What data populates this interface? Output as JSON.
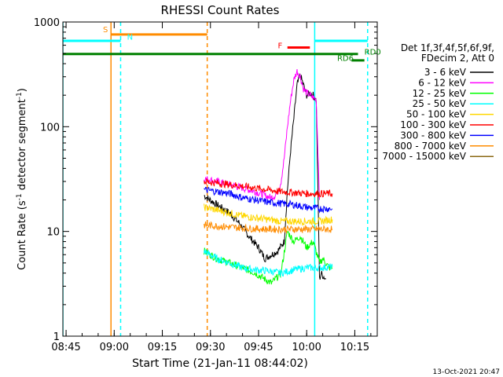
{
  "chart_data": {
    "type": "line",
    "title": "RHESSI Count Rates",
    "xlabel": "Start Time (21-Jan-11 08:44:02)",
    "ylabel_main": "Count Rate (s",
    "ylabel_sup1": "-1",
    "ylabel_mid": " detector segment",
    "ylabel_sup2": "-1",
    "ylabel_end": ")",
    "x_unit": "minutes since 08:44:02",
    "xlim": [
      0,
      98
    ],
    "ylim": [
      1,
      1000
    ],
    "y_scale": "log",
    "x_ticks": [
      {
        "label": "08:45",
        "value": 1
      },
      {
        "label": "09:00",
        "value": 16
      },
      {
        "label": "09:15",
        "value": 31
      },
      {
        "label": "09:30",
        "value": 46
      },
      {
        "label": "09:45",
        "value": 61
      },
      {
        "label": "10:00",
        "value": 76
      },
      {
        "label": "10:15",
        "value": 91
      }
    ],
    "y_ticks": [
      {
        "label": "1",
        "value": 1
      },
      {
        "label": "10",
        "value": 10
      },
      {
        "label": "100",
        "value": 100
      },
      {
        "label": "1000",
        "value": 1000
      }
    ],
    "legend_header": [
      "Det 1f,3f,4f,5f,6f,9f,",
      "FDecim 2, Att 0"
    ],
    "legend_placement": "right",
    "series": [
      {
        "name": "3 - 6 keV",
        "color": "#000000",
        "x": [
          44,
          48,
          52,
          55,
          58,
          61,
          63,
          65,
          67,
          69,
          70,
          71,
          72,
          73,
          74,
          75,
          76,
          77,
          78,
          79,
          80,
          80.5,
          81,
          82
        ],
        "y": [
          22,
          18,
          15,
          12,
          9,
          7,
          5.5,
          6,
          6.5,
          8,
          25,
          60,
          120,
          250,
          310,
          250,
          200,
          210,
          200,
          180,
          3.5,
          4,
          3.8,
          3.5
        ]
      },
      {
        "name": "6 - 12 keV",
        "color": "#ff00ff",
        "x": [
          44,
          48,
          52,
          56,
          60,
          63,
          65,
          66,
          67,
          68,
          69,
          70,
          71,
          72,
          73,
          74,
          75,
          76,
          77,
          78,
          79,
          80
        ],
        "y": [
          32,
          30,
          28,
          26,
          24,
          22,
          21,
          22,
          24,
          30,
          50,
          100,
          180,
          280,
          340,
          300,
          230,
          210,
          200,
          190,
          180,
          20
        ]
      },
      {
        "name": "12 - 25 keV",
        "color": "#00ff00",
        "x": [
          44,
          48,
          52,
          56,
          60,
          63,
          65,
          68,
          70,
          72,
          74,
          76,
          78,
          80,
          81,
          82,
          83,
          84
        ],
        "y": [
          6.5,
          5.5,
          5,
          4.5,
          4,
          3.5,
          3.2,
          4,
          10,
          8,
          9,
          7,
          8,
          5,
          5.5,
          5,
          4.5,
          4.5
        ]
      },
      {
        "name": "25 - 50 keV",
        "color": "#00ffff",
        "x": [
          44,
          48,
          52,
          56,
          60,
          64,
          68,
          72,
          76,
          80,
          84
        ],
        "y": [
          6.5,
          5.5,
          5,
          4.5,
          4.3,
          4.2,
          4,
          4.3,
          4.5,
          4.5,
          4.6
        ]
      },
      {
        "name": "50 - 100 keV",
        "color": "#ffd700",
        "x": [
          44,
          48,
          52,
          56,
          60,
          64,
          68,
          72,
          76,
          80,
          84
        ],
        "y": [
          17,
          16,
          15,
          14,
          13.5,
          13,
          12.5,
          12.5,
          12.5,
          12.5,
          13
        ]
      },
      {
        "name": "100 - 300 keV",
        "color": "#ff0000",
        "x": [
          44,
          48,
          52,
          56,
          60,
          64,
          68,
          72,
          76,
          80,
          84
        ],
        "y": [
          30,
          29,
          28,
          27,
          26,
          25,
          24,
          23.5,
          23,
          23,
          23
        ]
      },
      {
        "name": "300 - 800 keV",
        "color": "#0000ff",
        "x": [
          44,
          48,
          52,
          56,
          60,
          64,
          68,
          72,
          76,
          80,
          84
        ],
        "y": [
          25,
          24,
          23,
          21,
          20,
          19,
          18.5,
          18,
          17,
          16.5,
          16.5
        ]
      },
      {
        "name": "800 - 7000 keV",
        "color": "#ff8c00",
        "x": [
          44,
          48,
          52,
          56,
          60,
          64,
          68,
          72,
          76,
          80,
          84
        ],
        "y": [
          11.5,
          11.3,
          11,
          10.8,
          10.6,
          10.5,
          10.5,
          10.5,
          10.5,
          10.5,
          10.5
        ]
      },
      {
        "name": "7000 - 15000 keV",
        "color": "#8b6914",
        "x": [],
        "y": []
      }
    ],
    "annotations": [
      {
        "kind": "vline",
        "x": 0,
        "style": "solid",
        "color": "#00ffff"
      },
      {
        "kind": "vline",
        "x": 15,
        "style": "solid",
        "color": "#ff8c00"
      },
      {
        "kind": "vline",
        "x": 18,
        "style": "dashed",
        "color": "#00ffff"
      },
      {
        "kind": "vline",
        "x": 45,
        "style": "dashed",
        "color": "#ff8c00"
      },
      {
        "kind": "vline",
        "x": 78.5,
        "style": "solid",
        "color": "#00ffff"
      },
      {
        "kind": "vline",
        "x": 95,
        "style": "dashed",
        "color": "#00ffff"
      },
      {
        "kind": "hbar",
        "x1": 0,
        "x2": 18,
        "y": 660,
        "color": "#00ffff",
        "width": 3
      },
      {
        "kind": "hbar",
        "x1": 15,
        "x2": 45,
        "y": 760,
        "color": "#ff8c00",
        "width": 3
      },
      {
        "kind": "hbar",
        "x1": 0,
        "x2": 92,
        "y": 495,
        "color": "#008000",
        "width": 3
      },
      {
        "kind": "hbar",
        "x1": 70,
        "x2": 77,
        "y": 570,
        "color": "#ff0000",
        "width": 3
      },
      {
        "kind": "hbar",
        "x1": 78.5,
        "x2": 95,
        "y": 660,
        "color": "#00ffff",
        "width": 3
      },
      {
        "kind": "hbar",
        "x1": 90,
        "x2": 94,
        "y": 430,
        "color": "#008000",
        "width": 3
      }
    ],
    "flag_labels": [
      {
        "text": "S",
        "x": 12.5,
        "y": 800,
        "color": "#ff8c00"
      },
      {
        "text": "N",
        "x": 20,
        "y": 680,
        "color": "#00ffff"
      },
      {
        "text": "F",
        "x": 67,
        "y": 560,
        "color": "#ff0000"
      },
      {
        "text": "RD0",
        "x": 94,
        "y": 490,
        "color": "#008000"
      },
      {
        "text": "RD6",
        "x": 85.5,
        "y": 425,
        "color": "#008000"
      }
    ],
    "footer_timestamp": "13-Oct-2021 20:47"
  }
}
